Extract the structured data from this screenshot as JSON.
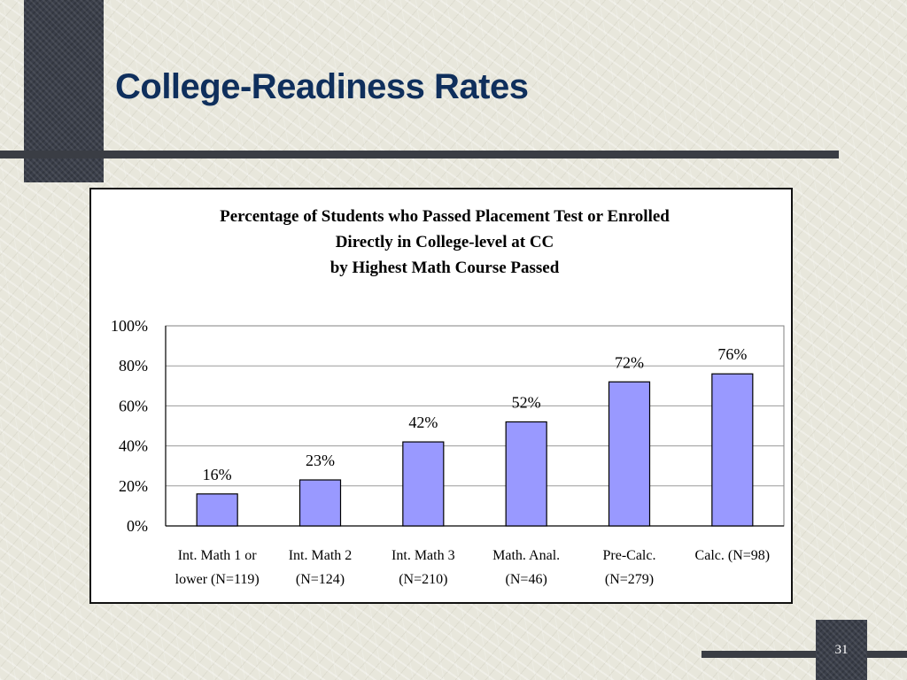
{
  "slide": {
    "title": "College-Readiness Rates",
    "page_number": "31"
  },
  "colors": {
    "bar_fill": "#9999ff",
    "title_color": "#0f2f5c",
    "dark_accent": "#3a3d44"
  },
  "chart_data": {
    "type": "bar",
    "title": [
      "Percentage of Students who Passed Placement Test or Enrolled",
      "Directly in College-level at CC",
      "by Highest Math Course Passed"
    ],
    "categories": [
      [
        "Int. Math 1 or",
        "lower (N=119)"
      ],
      [
        "Int. Math 2",
        "(N=124)"
      ],
      [
        "Int. Math 3",
        "(N=210)"
      ],
      [
        "Math. Anal.",
        "(N=46)"
      ],
      [
        "Pre-Calc.",
        "(N=279)"
      ],
      [
        "Calc. (N=98)"
      ]
    ],
    "values": [
      16,
      23,
      42,
      52,
      72,
      76
    ],
    "data_labels": [
      "16%",
      "23%",
      "42%",
      "52%",
      "72%",
      "76%"
    ],
    "ylim": [
      0,
      100
    ],
    "yticks": [
      0,
      20,
      40,
      60,
      80,
      100
    ],
    "ytick_labels": [
      "0%",
      "20%",
      "40%",
      "60%",
      "80%",
      "100%"
    ],
    "grid": true,
    "legend": "none"
  }
}
